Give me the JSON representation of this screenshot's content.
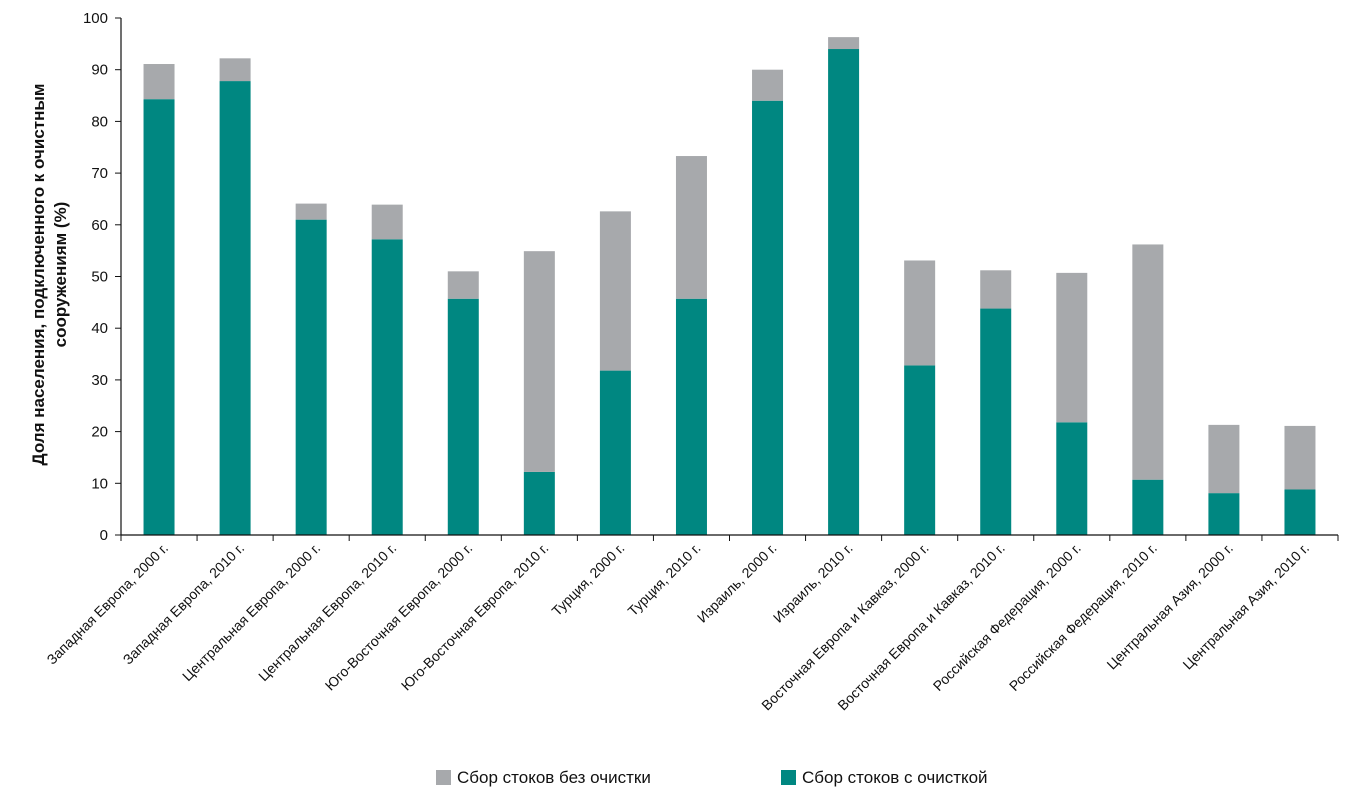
{
  "chart_data": {
    "type": "bar",
    "stacked": true,
    "title": "",
    "xlabel": "",
    "ylabel_lines": [
      "Доля населения, подключенного к очистным",
      "сооружениям (%)"
    ],
    "ylim": [
      0,
      100
    ],
    "yticks": [
      0,
      10,
      20,
      30,
      40,
      50,
      60,
      70,
      80,
      90,
      100
    ],
    "grid": false,
    "legend_position": "bottom-center",
    "categories": [
      "Западная Европа, 2000 г.",
      "Западная Европа, 2010 г.",
      "Центральная Европа, 2000 г.",
      "Центральная Европа, 2010 г.",
      "Юго-Восточная Европа, 2000 г.",
      "Юго-Восточная Европа, 2010 г.",
      "Турция, 2000 г.",
      "Турция, 2010 г.",
      "Израиль, 2000 г.",
      "Израиль, 2010 г.",
      "Восточная Европа и Кавказ, 2000 г.",
      "Восточная Европа и Кавказ, 2010 г.",
      "Российская Федерация, 2000 г.",
      "Российская Федерация, 2010 г.",
      "Центральная Азия, 2000 г.",
      "Центральная Азия, 2010 г."
    ],
    "series": [
      {
        "name": "Сбор стоков с очисткой",
        "color": "#008781",
        "values": [
          84.3,
          87.8,
          61.0,
          57.2,
          45.7,
          12.2,
          31.8,
          45.7,
          84.0,
          94.0,
          32.8,
          43.8,
          21.8,
          10.7,
          8.1,
          8.8
        ]
      },
      {
        "name": "Сбор стоков без очистки",
        "color": "#a7a9ac",
        "values": [
          6.8,
          4.4,
          3.1,
          6.7,
          5.3,
          42.7,
          30.8,
          27.6,
          6.0,
          2.3,
          20.3,
          7.4,
          28.9,
          45.5,
          13.2,
          12.3
        ]
      }
    ],
    "legend": [
      {
        "label": "Сбор стоков без очистки",
        "color": "#a7a9ac"
      },
      {
        "label": "Сбор стоков с очисткой",
        "color": "#008781"
      }
    ]
  }
}
